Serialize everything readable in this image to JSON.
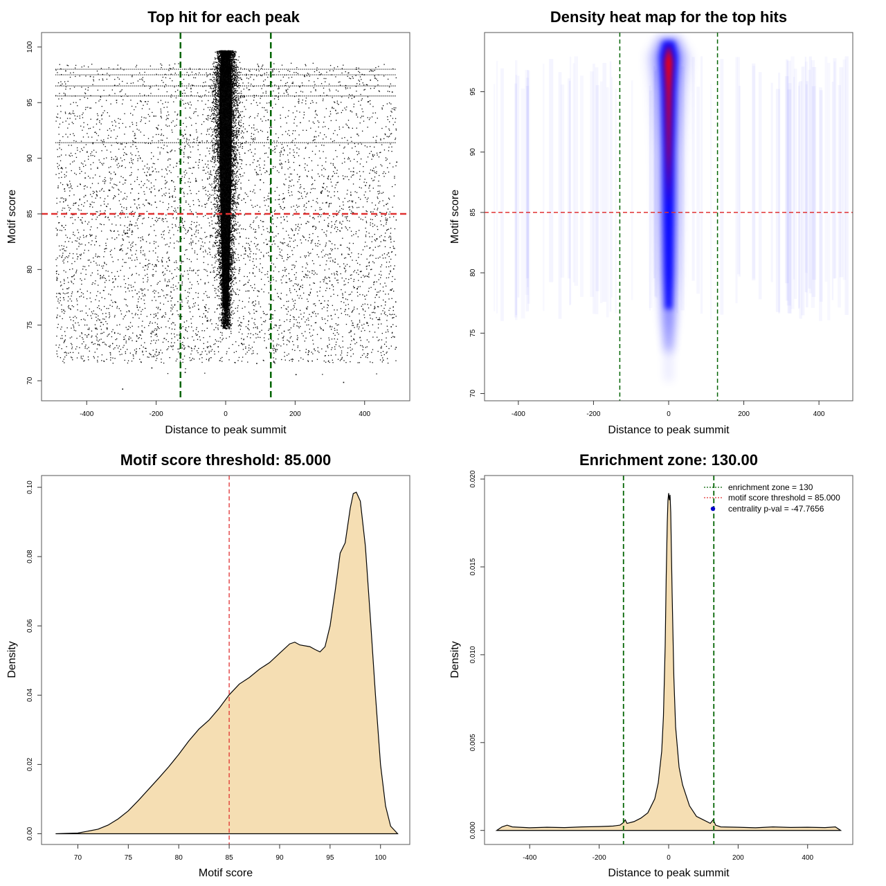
{
  "chart_data": [
    {
      "type": "scatter",
      "title": "Top hit for each peak",
      "xlabel": "Distance to peak summit",
      "ylabel": "Motif score",
      "xlim": [
        -530,
        530
      ],
      "ylim": [
        68.2,
        101.3
      ],
      "xticks": [
        "-400",
        "-200",
        "0",
        "200",
        "400"
      ],
      "yticks": [
        "70",
        "75",
        "80",
        "85",
        "90",
        "95",
        "100"
      ],
      "reference_lines": {
        "x": [
          -130,
          130
        ],
        "y": 85
      },
      "line_colors": {
        "vertical": "#006400",
        "horizontal": "#e03030",
        "points": "#000000"
      },
      "points": [
        [
          -462,
          97.9
        ],
        [
          -391,
          97.4
        ],
        [
          -321,
          96.6
        ],
        [
          -247,
          95.2
        ],
        [
          -188,
          93.8
        ],
        [
          -103,
          92.1
        ],
        [
          -55,
          91.6
        ],
        [
          -12,
          96.9
        ],
        [
          6,
          99.5
        ],
        [
          34,
          94.2
        ],
        [
          78,
          91.8
        ],
        [
          121,
          93.5
        ],
        [
          173,
          96.1
        ],
        [
          226,
          97.4
        ],
        [
          290,
          95.7
        ],
        [
          358,
          94.3
        ],
        [
          419,
          97.9
        ],
        [
          478,
          96.0
        ],
        [
          -474,
          89.2
        ],
        [
          -405,
          86.7
        ],
        [
          -336,
          88.8
        ],
        [
          -271,
          87.3
        ],
        [
          -204,
          86.1
        ],
        [
          -142,
          89.6
        ],
        [
          -78,
          85.8
        ],
        [
          -31,
          87.5
        ],
        [
          12,
          88.9
        ],
        [
          51,
          86.4
        ],
        [
          98,
          88.1
        ],
        [
          156,
          85.7
        ],
        [
          211,
          89.4
        ],
        [
          274,
          86.9
        ],
        [
          338,
          88.2
        ],
        [
          401,
          87.6
        ],
        [
          461,
          85.9
        ],
        [
          491,
          89.7
        ],
        [
          -486,
          83.6
        ],
        [
          -427,
          81.2
        ],
        [
          -362,
          79.5
        ],
        [
          -296,
          82.7
        ],
        [
          -233,
          80.4
        ],
        [
          -167,
          78.6
        ],
        [
          -99,
          83.1
        ],
        [
          -45,
          79.8
        ],
        [
          -8,
          77.4
        ],
        [
          19,
          81.6
        ],
        [
          63,
          78.9
        ],
        [
          117,
          82.3
        ],
        [
          182,
          79.2
        ],
        [
          249,
          83.9
        ],
        [
          313,
          80.7
        ],
        [
          377,
          78.3
        ],
        [
          434,
          82.8
        ],
        [
          482,
          80.1
        ],
        [
          -468,
          76.4
        ],
        [
          -396,
          74.2
        ],
        [
          -318,
          77.1
        ],
        [
          -258,
          73.6
        ],
        [
          -184,
          75.8
        ],
        [
          -121,
          72.9
        ],
        [
          -62,
          76.7
        ],
        [
          -3,
          75.3
        ],
        [
          44,
          73.4
        ],
        [
          109,
          76.1
        ],
        [
          167,
          74.5
        ],
        [
          236,
          72.4
        ],
        [
          302,
          75.9
        ],
        [
          367,
          73.8
        ],
        [
          428,
          76.6
        ],
        [
          475,
          74.9
        ],
        [
          -298,
          69.3
        ],
        [
          -214,
          71.2
        ],
        [
          -118,
          70.8
        ],
        [
          -23,
          73.1
        ],
        [
          88,
          71.6
        ],
        [
          201,
          70.6
        ],
        [
          338,
          69.9
        ],
        [
          452,
          71.9
        ]
      ],
      "horizontal_streaks": [
        91.4,
        95.6,
        96.5,
        97.5,
        98.0
      ],
      "core_distribution": {
        "center_x": 0,
        "half_width_by_score": [
          [
            75.5,
            12
          ],
          [
            80,
            20
          ],
          [
            85,
            27
          ],
          [
            90,
            31
          ],
          [
            95,
            34
          ],
          [
            98,
            30
          ],
          [
            99.7,
            20
          ]
        ]
      }
    },
    {
      "type": "heatmap",
      "title": "Density heat map for the top hits",
      "xlabel": "Distance to peak summit",
      "ylabel": "Motif score",
      "xlim": [
        -490,
        490
      ],
      "ylim": [
        69.4,
        99.9
      ],
      "xticks": [
        "-400",
        "-200",
        "0",
        "200",
        "400"
      ],
      "yticks": [
        "70",
        "75",
        "80",
        "85",
        "90",
        "95"
      ],
      "reference_lines": {
        "x": [
          -130,
          130
        ],
        "y": 85
      },
      "colors": {
        "low": "#ffffff",
        "mid": "#0000ff",
        "high": "#ff0000",
        "vertical": "#006400",
        "horizontal": "#e03030"
      },
      "ridge_center_x": 0,
      "ridge_half_width_by_score": [
        [
          73,
          3
        ],
        [
          76,
          8
        ],
        [
          80,
          12
        ],
        [
          85,
          14
        ],
        [
          90,
          15
        ],
        [
          95,
          19
        ],
        [
          98,
          24
        ],
        [
          99.3,
          14
        ]
      ],
      "ridge_intensity_by_score": [
        [
          72,
          0.05
        ],
        [
          75,
          0.3
        ],
        [
          79,
          0.62
        ],
        [
          83,
          0.8
        ],
        [
          86,
          0.95
        ],
        [
          90,
          1.35
        ],
        [
          95,
          1.55
        ],
        [
          97.5,
          1.75
        ],
        [
          99.3,
          0.8
        ]
      ]
    },
    {
      "type": "area",
      "title": "Motif score threshold: 85.000",
      "xlabel": "Motif score",
      "ylabel": "Density",
      "xlim": [
        66.4,
        102.9
      ],
      "ylim": [
        -0.0031,
        0.1034
      ],
      "xticks": [
        "70",
        "75",
        "80",
        "85",
        "90",
        "95",
        "100"
      ],
      "yticks": [
        "0.00",
        "0.02",
        "0.04",
        "0.06",
        "0.08",
        "0.10"
      ],
      "threshold": 85,
      "fill_color": "#f5deb3",
      "line_color": "#000000",
      "threshold_color": "#e03030",
      "x": [
        67.8,
        70,
        72,
        73,
        74,
        75,
        76,
        77,
        78,
        79,
        80,
        81,
        82,
        83,
        84,
        85,
        86,
        87,
        88,
        89,
        90,
        91,
        91.5,
        92,
        93,
        93.5,
        94,
        94.5,
        95,
        95.5,
        96,
        96.5,
        97,
        97.3,
        97.6,
        98,
        98.5,
        99,
        99.5,
        100,
        100.5,
        101,
        101.7
      ],
      "y": [
        0,
        0.0002,
        0.0013,
        0.0025,
        0.0043,
        0.0066,
        0.0096,
        0.0128,
        0.016,
        0.0193,
        0.0229,
        0.0268,
        0.0302,
        0.0328,
        0.0362,
        0.0401,
        0.0432,
        0.0451,
        0.0475,
        0.0494,
        0.0521,
        0.0548,
        0.0553,
        0.0545,
        0.054,
        0.0532,
        0.0525,
        0.054,
        0.06,
        0.07,
        0.081,
        0.084,
        0.094,
        0.0982,
        0.0986,
        0.096,
        0.083,
        0.062,
        0.04,
        0.02,
        0.008,
        0.0022,
        0
      ]
    },
    {
      "type": "area",
      "title": "Enrichment zone: 130.00",
      "xlabel": "Distance to peak summit",
      "ylabel": "Density",
      "xlim": [
        -530,
        530
      ],
      "ylim": [
        -0.0008,
        0.0202
      ],
      "xticks": [
        "-400",
        "-200",
        "0",
        "200",
        "400"
      ],
      "yticks": [
        "0.000",
        "0.005",
        "0.010",
        "0.015",
        "0.020"
      ],
      "zone": [
        -130,
        130
      ],
      "fill_color": "#f5deb3",
      "line_color": "#000000",
      "zone_color": "#006400",
      "x": [
        -495,
        -480,
        -465,
        -450,
        -400,
        -350,
        -300,
        -250,
        -200,
        -160,
        -140,
        -130,
        -125,
        -120,
        -100,
        -80,
        -60,
        -40,
        -30,
        -20,
        -15,
        -10,
        -7,
        -4,
        -2,
        0,
        1,
        2,
        3,
        4,
        6,
        8,
        10,
        15,
        20,
        30,
        40,
        50,
        60,
        80,
        100,
        120,
        128,
        131,
        135,
        150,
        200,
        250,
        300,
        350,
        400,
        450,
        480,
        495
      ],
      "y": [
        0,
        0.0002,
        0.0003,
        0.0002,
        0.00015,
        0.00018,
        0.00016,
        0.0002,
        0.00022,
        0.00025,
        0.0003,
        0.00045,
        0.0006,
        0.0004,
        0.0005,
        0.0007,
        0.001,
        0.0018,
        0.0027,
        0.0045,
        0.0065,
        0.0105,
        0.0145,
        0.0175,
        0.0188,
        0.0192,
        0.019,
        0.0188,
        0.0189,
        0.0191,
        0.0181,
        0.0158,
        0.0135,
        0.0087,
        0.0059,
        0.0036,
        0.0026,
        0.002,
        0.0014,
        0.0008,
        0.0006,
        0.0004,
        0.0006,
        0.0005,
        0.0003,
        0.0002,
        0.00018,
        0.00015,
        0.0002,
        0.00017,
        0.00018,
        0.00016,
        0.0002,
        0
      ],
      "legend": {
        "position": "top-right",
        "entries": [
          {
            "label": "enrichment zone = 130",
            "symbol": "dotted-line",
            "color": "#006400"
          },
          {
            "label": "motif score threshold = 85.000",
            "symbol": "dotted-line",
            "color": "#e03030"
          },
          {
            "label": "centrality p-val = -47.7656",
            "symbol": "dot",
            "color": "#0000cc"
          }
        ]
      }
    }
  ]
}
